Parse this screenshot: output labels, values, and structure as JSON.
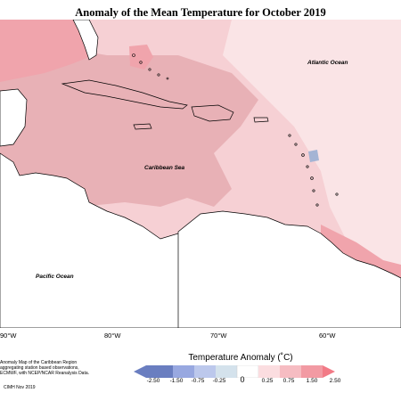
{
  "title": "Anomaly of the Mean Temperature for October 2019",
  "ocean_labels": {
    "atlantic": "Atlantic Ocean",
    "caribbean": "Caribbean Sea",
    "pacific": "Pacific Ocean"
  },
  "longitude_labels": [
    "90°W",
    "80°W",
    "70°W",
    "60°W"
  ],
  "legend": {
    "title": "Temperature Anomaly (˚C)",
    "ticks": [
      "-2.50",
      "-1.50",
      "-0.75",
      "-0.25",
      "0",
      "0.25",
      "0.75",
      "1.50",
      "2.50"
    ],
    "colors": [
      "#6a7ec0",
      "#98a8e0",
      "#bcc8ec",
      "#d4e2ec",
      "#ffffff",
      "#fbdde0",
      "#f6bcc2",
      "#f29aa3",
      "#f27a86"
    ]
  },
  "footer_lines": [
    "Anomaly Map of the Caribbean Region",
    "aggregating station based observations,",
    "ECMWF, with NCEP/NCAR Reanalysis Data."
  ],
  "credit": "CIMH Nov 2019",
  "colors": {
    "strong_warm": "#f0a4ac",
    "moderate_warm": "#e8b1b6",
    "light_warm": "#f6d0d4",
    "faint_warm": "#fae4e6",
    "cool": "#a4b4d4",
    "strong_cool": "#5f78a8"
  }
}
